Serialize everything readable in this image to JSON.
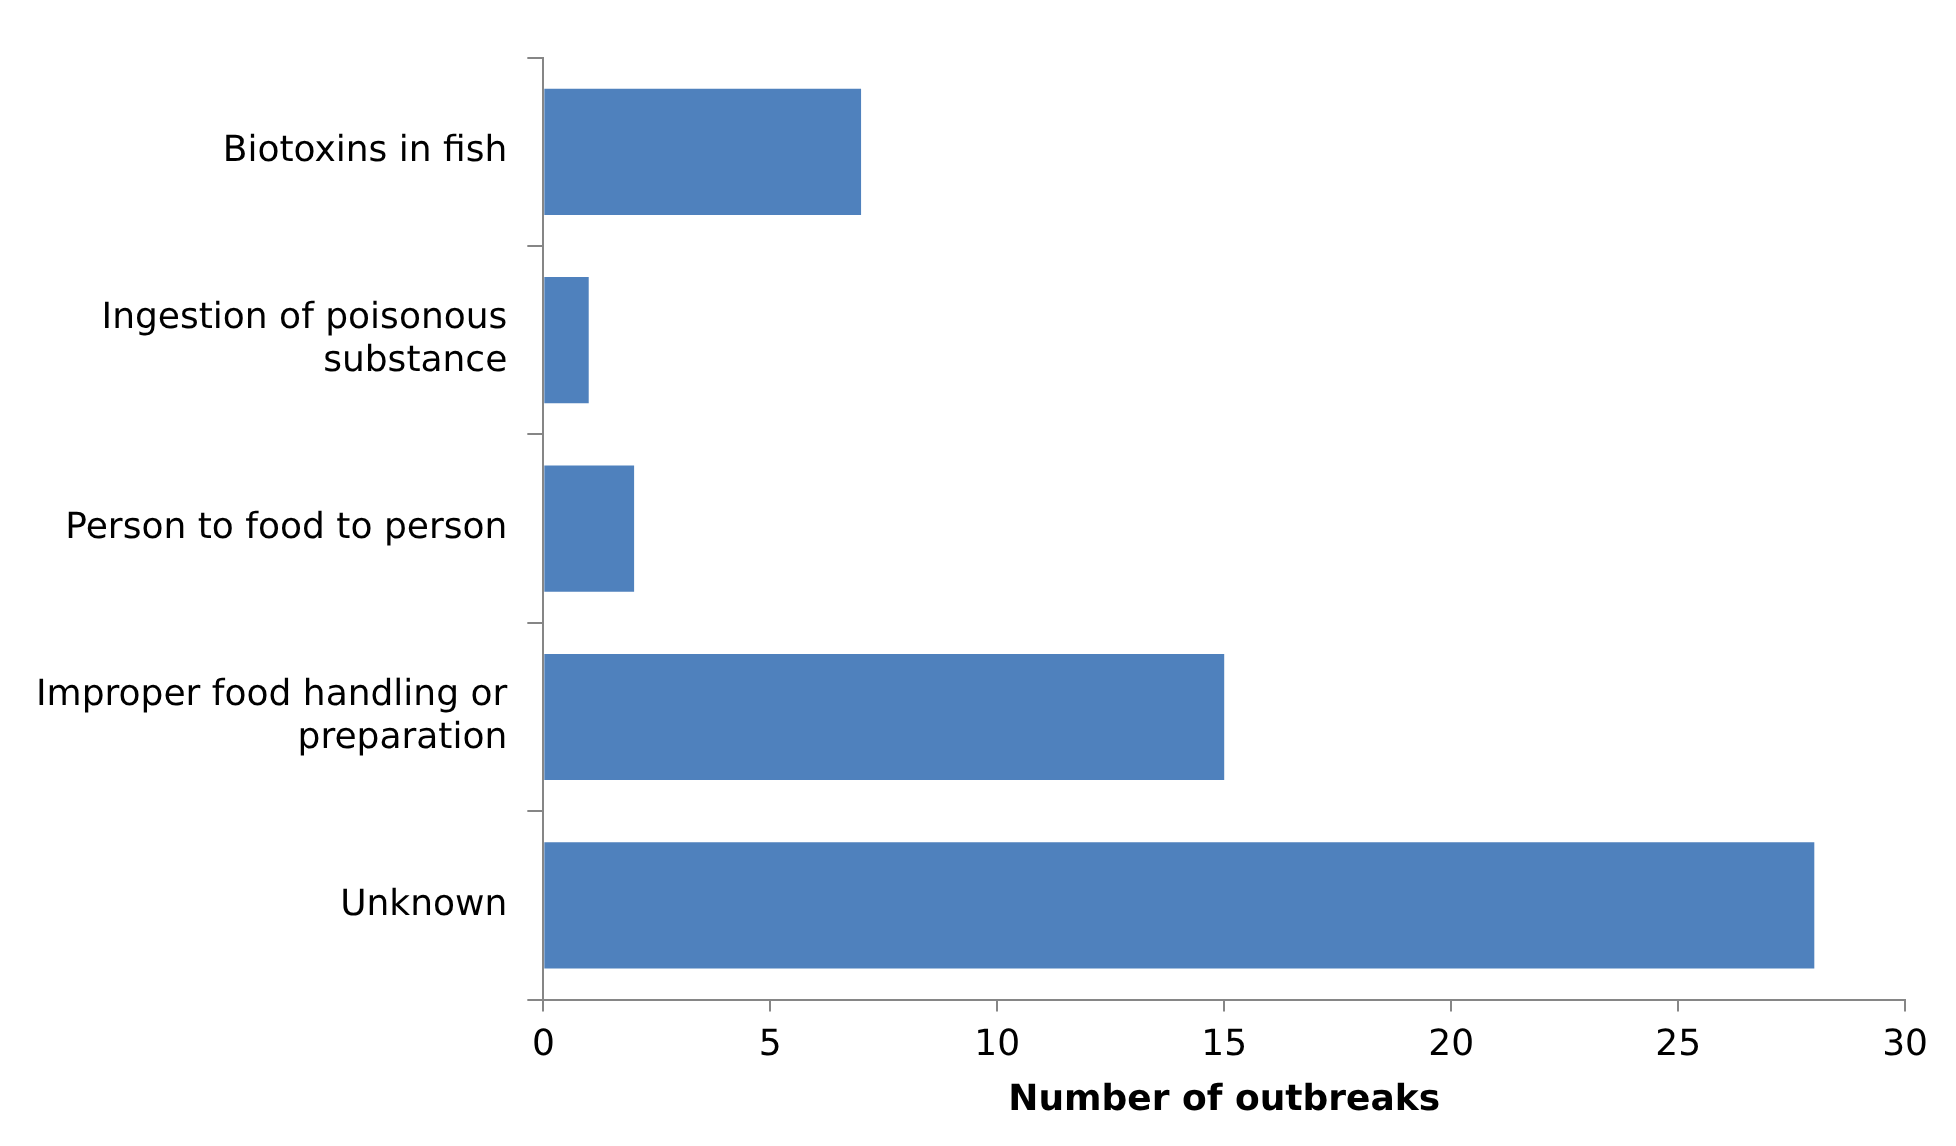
{
  "chart_data": {
    "type": "bar",
    "orientation": "horizontal",
    "xlabel": "Number of outbreaks",
    "categories": [
      "Biotoxins in fish",
      "Ingestion of poisonous substance",
      "Person to food to person",
      "Improper food handling or preparation",
      "Unknown"
    ],
    "values": [
      7,
      1,
      2,
      15,
      28
    ],
    "color": "#4f81bd",
    "xlim": [
      0,
      30
    ],
    "xticks": [
      0,
      5,
      10,
      15,
      20,
      25,
      30
    ],
    "grid": false,
    "legend": false
  }
}
